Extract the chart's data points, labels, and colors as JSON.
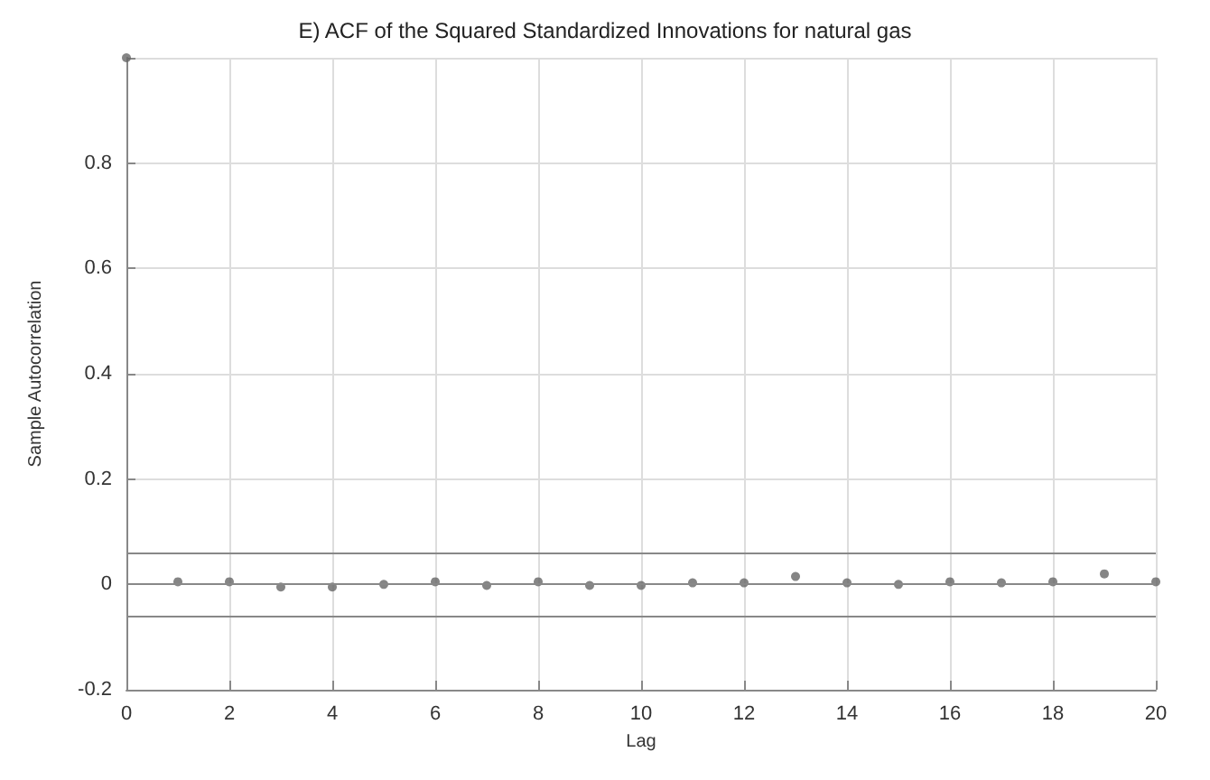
{
  "chart_data": {
    "type": "scatter",
    "title": "E) ACF of the Squared Standardized Innovations for natural gas",
    "xlabel": "Lag",
    "ylabel": "Sample Autocorrelation",
    "x": [
      0,
      1,
      2,
      3,
      4,
      5,
      6,
      7,
      8,
      9,
      10,
      11,
      12,
      13,
      14,
      15,
      16,
      17,
      18,
      19,
      20
    ],
    "series": [
      {
        "color": "#666666",
        "values": [
          1,
          0.005,
          0.005,
          -0.005,
          -0.005,
          0,
          0.005,
          -0.002,
          0.005,
          -0.002,
          -0.002,
          0.003,
          0.003,
          0.015,
          0.003,
          0,
          0.005,
          0.003,
          0.005,
          0.02,
          0.005
        ]
      }
    ],
    "marker": "circle",
    "xlim": [
      0,
      20
    ],
    "xticks": [
      0,
      2,
      4,
      6,
      8,
      10,
      12,
      14,
      16,
      18,
      20
    ],
    "ylim": [
      -0.2,
      1
    ],
    "yticks": [
      -0.2,
      0,
      0.2,
      0.4,
      0.6,
      0.8,
      {
        "value": 1,
        "label": null
      }
    ],
    "ref_lines": [
      {
        "axis": "y",
        "value": 0.06,
        "color": "#888888"
      },
      {
        "axis": "y",
        "value": -0.06,
        "color": "#888888"
      },
      {
        "axis": "y",
        "value": 0,
        "color": "#888888"
      }
    ],
    "grid": true
  }
}
